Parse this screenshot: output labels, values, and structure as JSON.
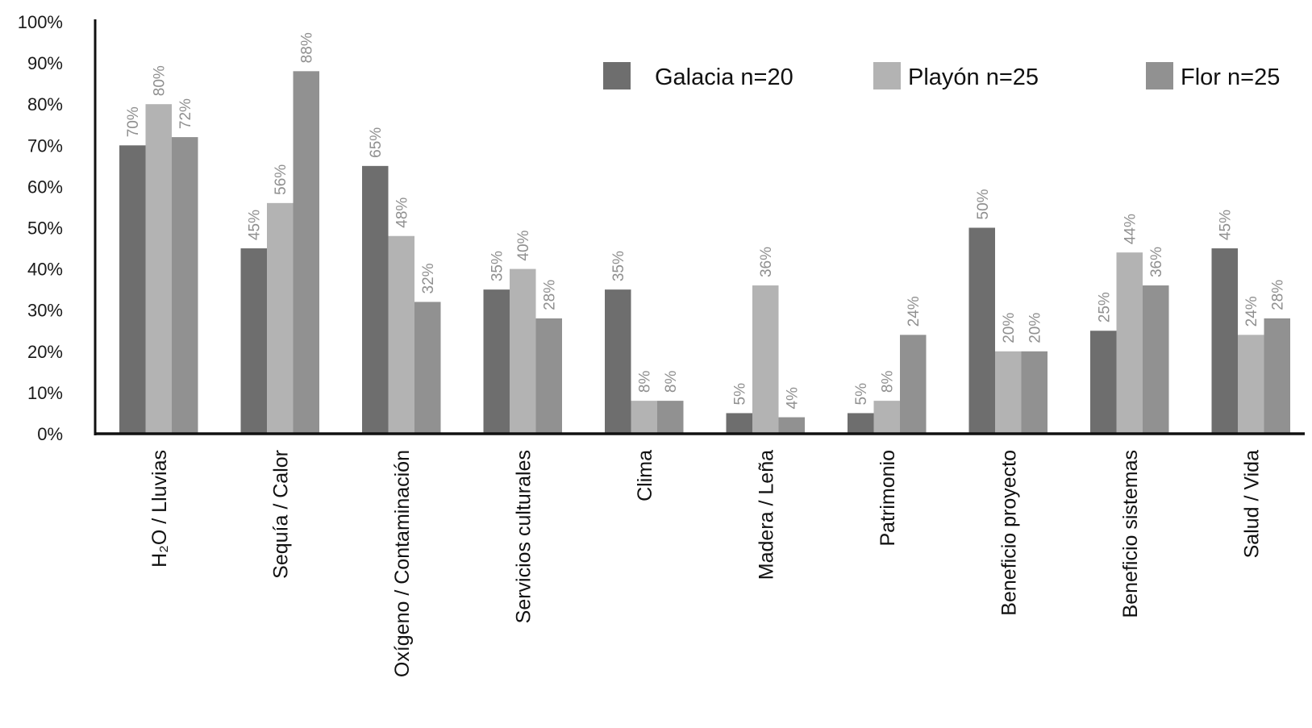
{
  "chart_data": {
    "type": "bar",
    "categories": [
      "H₂O / Lluvias",
      "Sequía / Calor",
      "Oxígeno / Contaminación",
      "Servicios culturales",
      "Clima",
      "Madera / Leña",
      "Patrimonio",
      "Beneficio proyecto",
      "Beneficio sistemas",
      "Salud / Vida"
    ],
    "series": [
      {
        "name": "Galacia n=20",
        "color": "#6e6e6e",
        "values": [
          70,
          45,
          65,
          35,
          35,
          5,
          5,
          50,
          25,
          45
        ]
      },
      {
        "name": "Playón n=25",
        "color": "#b3b3b3",
        "values": [
          80,
          56,
          48,
          40,
          8,
          36,
          8,
          20,
          44,
          24
        ]
      },
      {
        "name": "Flor n=25",
        "color": "#919191",
        "values": [
          72,
          88,
          32,
          28,
          8,
          4,
          24,
          20,
          36,
          28
        ]
      }
    ],
    "data_labels": [
      [
        "70%",
        "45%",
        "65%",
        "35%",
        "35%",
        "5%",
        "5%",
        "50%",
        "25%",
        "45%"
      ],
      [
        "80%",
        "56%",
        "48%",
        "40%",
        "8%",
        "36%",
        "8%",
        "20%",
        "44%",
        "24%"
      ],
      [
        "72%",
        "88%",
        "32%",
        "28%",
        "8%",
        "4%",
        "24%",
        "20%",
        "36%",
        "28%"
      ]
    ],
    "y_ticks": [
      "0%",
      "10%",
      "20%",
      "30%",
      "40%",
      "50%",
      "60%",
      "70%",
      "80%",
      "90%",
      "100%"
    ],
    "ylim": [
      0,
      100
    ],
    "legend_position": "top-right",
    "grid": false,
    "title": "",
    "xlabel": "",
    "ylabel": ""
  }
}
